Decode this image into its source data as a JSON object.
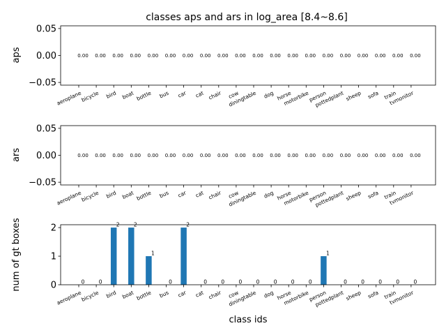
{
  "title": "classes aps and ars in log_area [8.4~8.6]",
  "chart_data": [
    {
      "type": "scatter",
      "ylabel": "aps",
      "xlabel": "",
      "categories": [
        "aeroplane",
        "bicycle",
        "bird",
        "boat",
        "bottle",
        "bus",
        "car",
        "cat",
        "chair",
        "cow",
        "diningtable",
        "dog",
        "horse",
        "motorbike",
        "person",
        "pottedplant",
        "sheep",
        "sofa",
        "train",
        "tvmonitor"
      ],
      "values": [
        0,
        0,
        0,
        0,
        0,
        0,
        0,
        0,
        0,
        0,
        0,
        0,
        0,
        0,
        0,
        0,
        0,
        0,
        0,
        0
      ],
      "data_labels": [
        "0.00",
        "0.00",
        "0.00",
        "0.00",
        "0.00",
        "0.00",
        "0.00",
        "0.00",
        "0.00",
        "0.00",
        "0.00",
        "0.00",
        "0.00",
        "0.00",
        "0.00",
        "0.00",
        "0.00",
        "0.00",
        "0.00",
        "0.00"
      ],
      "ylim": [
        -0.055,
        0.055
      ],
      "yticks": [
        "0.05",
        "0.00",
        "−0.05"
      ],
      "grid": false
    },
    {
      "type": "scatter",
      "ylabel": "ars",
      "xlabel": "",
      "categories": [
        "aeroplane",
        "bicycle",
        "bird",
        "boat",
        "bottle",
        "bus",
        "car",
        "cat",
        "chair",
        "cow",
        "diningtable",
        "dog",
        "horse",
        "motorbike",
        "person",
        "pottedplant",
        "sheep",
        "sofa",
        "train",
        "tvmonitor"
      ],
      "values": [
        0,
        0,
        0,
        0,
        0,
        0,
        0,
        0,
        0,
        0,
        0,
        0,
        0,
        0,
        0,
        0,
        0,
        0,
        0,
        0
      ],
      "data_labels": [
        "0.00",
        "0.00",
        "0.00",
        "0.00",
        "0.00",
        "0.00",
        "0.00",
        "0.00",
        "0.00",
        "0.00",
        "0.00",
        "0.00",
        "0.00",
        "0.00",
        "0.00",
        "0.00",
        "0.00",
        "0.00",
        "0.00",
        "0.00"
      ],
      "ylim": [
        -0.055,
        0.055
      ],
      "yticks": [
        "0.05",
        "0.00",
        "−0.05"
      ],
      "grid": false
    },
    {
      "type": "bar",
      "ylabel": "num of gt boxes",
      "xlabel": "class ids",
      "categories": [
        "aeroplane",
        "bicycle",
        "bird",
        "boat",
        "bottle",
        "bus",
        "car",
        "cat",
        "chair",
        "cow",
        "diningtable",
        "dog",
        "horse",
        "motorbike",
        "person",
        "pottedplant",
        "sheep",
        "sofa",
        "train",
        "tvmonitor"
      ],
      "values": [
        0,
        0,
        2,
        2,
        1,
        0,
        2,
        0,
        0,
        0,
        0,
        0,
        0,
        0,
        1,
        0,
        0,
        0,
        0,
        0
      ],
      "data_labels": [
        "0",
        "0",
        "2",
        "2",
        "1",
        "0",
        "2",
        "0",
        "0",
        "0",
        "0",
        "0",
        "0",
        "0",
        "1",
        "0",
        "0",
        "0",
        "0",
        "0"
      ],
      "ylim": [
        0,
        2.1
      ],
      "yticks": [
        "0",
        "1",
        "2"
      ],
      "bar_color": "#1f77b4",
      "grid": false
    }
  ]
}
